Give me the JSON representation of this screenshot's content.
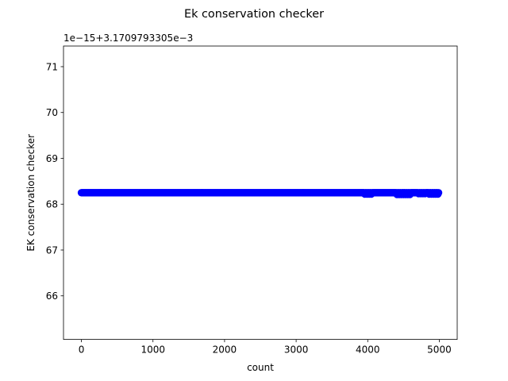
{
  "chart_data": {
    "type": "scatter",
    "title": "Ek conservation checker",
    "xlabel": "count",
    "ylabel": "EK conservation checker",
    "offset_label": "1e−15+3.1709793305e−3",
    "xlim": [
      -250,
      5250
    ],
    "ylim": [
      65.05,
      71.45
    ],
    "xticks": [
      0,
      1000,
      2000,
      3000,
      4000,
      5000
    ],
    "xtick_labels": [
      "0",
      "1000",
      "2000",
      "3000",
      "4000",
      "5000"
    ],
    "yticks": [
      66,
      67,
      68,
      69,
      70,
      71
    ],
    "ytick_labels": [
      "66",
      "67",
      "68",
      "69",
      "70",
      "71"
    ],
    "grid": false,
    "marker_color": "#0000ff",
    "series": [
      {
        "x_start": 0,
        "x_end": 4990,
        "x_step": 10,
        "y_base": 68.25,
        "deviations": [
          {
            "x_from": 3950,
            "x_to": 4050,
            "y": 68.22
          },
          {
            "x_from": 4400,
            "x_to": 4600,
            "y": 68.21
          },
          {
            "x_from": 4700,
            "x_to": 4800,
            "y": 68.23
          },
          {
            "x_from": 4850,
            "x_to": 4990,
            "y": 68.22
          }
        ]
      }
    ]
  }
}
